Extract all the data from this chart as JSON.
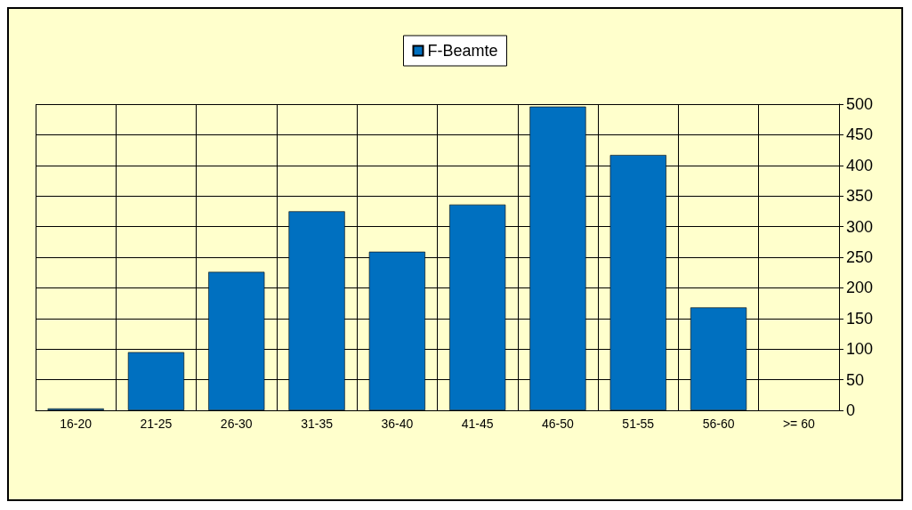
{
  "chart_data": {
    "type": "bar",
    "categories": [
      "16-20",
      "21-25",
      "26-30",
      "31-35",
      "36-40",
      "41-45",
      "46-50",
      "51-55",
      "56-60",
      ">= 60"
    ],
    "series": [
      {
        "name": "F-Beamte",
        "color": "#0070c0",
        "values": [
          3,
          95,
          226,
          325,
          259,
          336,
          496,
          417,
          168,
          0
        ]
      }
    ],
    "ylim": [
      0,
      500
    ],
    "yticks": [
      0,
      50,
      100,
      150,
      200,
      250,
      300,
      350,
      400,
      450,
      500
    ],
    "grid": true,
    "legend": "top"
  }
}
